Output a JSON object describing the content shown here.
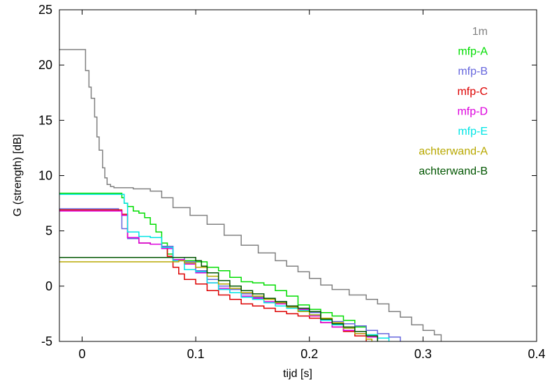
{
  "chart_data": {
    "type": "line",
    "xlabel": "tijd  [s]",
    "ylabel": "G (strength)  [dB]",
    "xlim": [
      -0.02,
      0.4
    ],
    "ylim": [
      -5,
      25
    ],
    "xticks": [
      0,
      0.1,
      0.2,
      0.3,
      0.4
    ],
    "xtick_labels": [
      "0",
      "0.1",
      "0.2",
      "0.3",
      "0.4"
    ],
    "yticks": [
      -5,
      0,
      5,
      10,
      15,
      20,
      25
    ],
    "ytick_labels": [
      "-5",
      "0",
      "5",
      "10",
      "15",
      "20",
      "25"
    ],
    "grid": false,
    "legend_position": "top-right",
    "series": [
      {
        "name": "1m",
        "color": "#808080",
        "x": [
          -0.02,
          0.002,
          0.003,
          0.006,
          0.008,
          0.011,
          0.013,
          0.015,
          0.018,
          0.02,
          0.022,
          0.025,
          0.028,
          0.035,
          0.045,
          0.06,
          0.07,
          0.08,
          0.095,
          0.11,
          0.125,
          0.14,
          0.155,
          0.17,
          0.18,
          0.19,
          0.2,
          0.21,
          0.22,
          0.235,
          0.25,
          0.26,
          0.27,
          0.28,
          0.29,
          0.3,
          0.31,
          0.316
        ],
        "y": [
          21.4,
          21.4,
          19.5,
          18.0,
          17.0,
          15.3,
          13.5,
          12.3,
          10.7,
          9.8,
          9.2,
          9.0,
          8.9,
          8.9,
          8.8,
          8.6,
          8.0,
          7.1,
          6.4,
          5.6,
          4.6,
          3.7,
          3.0,
          2.3,
          1.8,
          1.3,
          0.7,
          0.1,
          -0.3,
          -0.8,
          -1.2,
          -1.6,
          -2.3,
          -2.8,
          -3.5,
          -4.0,
          -4.4,
          -5.0
        ]
      },
      {
        "name": "mfp-A",
        "color": "#00dd00",
        "x": [
          -0.02,
          0.033,
          0.035,
          0.037,
          0.04,
          0.045,
          0.05,
          0.055,
          0.06,
          0.065,
          0.07,
          0.075,
          0.08,
          0.085,
          0.09,
          0.1,
          0.11,
          0.12,
          0.13,
          0.14,
          0.15,
          0.16,
          0.17,
          0.18,
          0.19,
          0.2,
          0.21,
          0.22,
          0.23,
          0.24,
          0.25,
          0.26
        ],
        "y": [
          8.4,
          8.4,
          8.0,
          7.5,
          7.2,
          6.8,
          6.6,
          6.2,
          5.6,
          4.9,
          3.9,
          2.9,
          2.4,
          2.3,
          2.3,
          2.2,
          1.7,
          1.4,
          0.8,
          0.4,
          0.3,
          0.1,
          -0.4,
          -0.9,
          -1.7,
          -2.1,
          -2.4,
          -2.7,
          -3.1,
          -3.7,
          -4.4,
          -5.0
        ]
      },
      {
        "name": "mfp-B",
        "color": "#6666dd",
        "x": [
          -0.02,
          0.03,
          0.032,
          0.035,
          0.04,
          0.05,
          0.06,
          0.07,
          0.08,
          0.09,
          0.1,
          0.11,
          0.12,
          0.13,
          0.14,
          0.15,
          0.16,
          0.17,
          0.18,
          0.19,
          0.2,
          0.21,
          0.22,
          0.23,
          0.24,
          0.25,
          0.26,
          0.27,
          0.28
        ],
        "y": [
          7.0,
          7.0,
          6.8,
          5.2,
          4.3,
          3.9,
          3.8,
          3.6,
          2.6,
          2.2,
          1.4,
          0.6,
          0.0,
          -0.3,
          -0.7,
          -1.0,
          -1.2,
          -1.4,
          -1.9,
          -2.1,
          -2.4,
          -2.9,
          -3.2,
          -3.4,
          -3.6,
          -4.0,
          -4.3,
          -4.6,
          -5.0
        ]
      },
      {
        "name": "mfp-C",
        "color": "#dd0000",
        "x": [
          -0.02,
          0.033,
          0.035,
          0.04,
          0.05,
          0.06,
          0.07,
          0.075,
          0.08,
          0.085,
          0.09,
          0.1,
          0.11,
          0.12,
          0.13,
          0.14,
          0.15,
          0.16,
          0.17,
          0.18,
          0.19,
          0.2,
          0.21,
          0.22,
          0.23,
          0.24,
          0.25
        ],
        "y": [
          6.9,
          6.9,
          6.5,
          4.4,
          3.9,
          3.8,
          3.5,
          2.7,
          1.7,
          1.1,
          0.6,
          0.2,
          -0.4,
          -0.8,
          -1.2,
          -1.6,
          -1.8,
          -2.0,
          -2.3,
          -2.5,
          -2.7,
          -2.9,
          -3.3,
          -3.7,
          -4.1,
          -4.5,
          -5.0
        ]
      },
      {
        "name": "mfp-D",
        "color": "#dd00dd",
        "x": [
          -0.02,
          0.033,
          0.035,
          0.04,
          0.05,
          0.06,
          0.07,
          0.08,
          0.09,
          0.1,
          0.11,
          0.12,
          0.13,
          0.14,
          0.15,
          0.16,
          0.17,
          0.18,
          0.19,
          0.2,
          0.21,
          0.22,
          0.23,
          0.24,
          0.25,
          0.26
        ],
        "y": [
          6.8,
          6.8,
          6.4,
          4.4,
          3.9,
          3.8,
          3.4,
          2.4,
          2.0,
          1.2,
          0.3,
          -0.2,
          -0.6,
          -0.9,
          -1.1,
          -1.4,
          -1.6,
          -1.9,
          -2.1,
          -2.7,
          -3.3,
          -3.7,
          -4.0,
          -4.3,
          -4.6,
          -5.0
        ]
      },
      {
        "name": "mfp-E",
        "color": "#00e5e5",
        "x": [
          -0.02,
          0.035,
          0.037,
          0.04,
          0.05,
          0.06,
          0.07,
          0.08,
          0.09,
          0.1,
          0.11,
          0.12,
          0.13,
          0.14,
          0.15,
          0.16,
          0.17,
          0.18,
          0.19,
          0.2,
          0.21,
          0.22,
          0.23,
          0.24,
          0.25,
          0.26,
          0.27
        ],
        "y": [
          8.3,
          8.3,
          7.5,
          4.9,
          4.5,
          4.4,
          3.5,
          2.3,
          1.5,
          1.3,
          0.3,
          -0.3,
          -0.6,
          -1.0,
          -1.2,
          -1.5,
          -1.8,
          -2.0,
          -2.2,
          -2.6,
          -3.1,
          -3.5,
          -3.8,
          -4.1,
          -4.4,
          -4.7,
          -5.0
        ]
      },
      {
        "name": "achterwand-A",
        "color": "#b8a800",
        "x": [
          -0.02,
          0.08,
          0.085,
          0.09,
          0.1,
          0.11,
          0.12,
          0.13,
          0.14,
          0.15,
          0.16,
          0.17,
          0.18,
          0.19,
          0.2,
          0.21,
          0.22,
          0.23,
          0.24,
          0.25,
          0.255
        ],
        "y": [
          2.2,
          2.2,
          2.3,
          2.1,
          1.7,
          0.9,
          0.2,
          -0.2,
          -0.6,
          -0.9,
          -1.2,
          -1.5,
          -1.9,
          -2.3,
          -2.6,
          -2.9,
          -3.3,
          -3.8,
          -4.3,
          -4.8,
          -5.0
        ]
      },
      {
        "name": "achterwand-B",
        "color": "#005500",
        "x": [
          -0.02,
          0.095,
          0.1,
          0.105,
          0.11,
          0.12,
          0.13,
          0.14,
          0.15,
          0.16,
          0.17,
          0.18,
          0.19,
          0.2,
          0.21,
          0.22,
          0.23,
          0.24,
          0.25,
          0.26
        ],
        "y": [
          2.6,
          2.6,
          2.3,
          1.8,
          1.2,
          0.5,
          0.0,
          -0.4,
          -0.7,
          -1.1,
          -1.4,
          -1.8,
          -2.0,
          -2.3,
          -3.0,
          -3.4,
          -3.7,
          -4.1,
          -4.5,
          -5.0
        ]
      }
    ]
  }
}
